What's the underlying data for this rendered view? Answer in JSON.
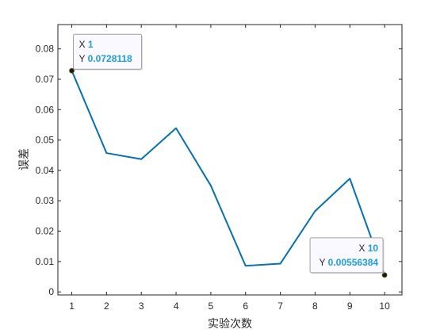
{
  "chart_data": {
    "type": "line",
    "xlabel": "实验次数",
    "ylabel": "误差",
    "x": [
      1,
      2,
      3,
      4,
      5,
      6,
      7,
      8,
      9,
      10
    ],
    "series": [
      {
        "values": [
          0.0728118,
          0.0457,
          0.0437,
          0.0539,
          0.035,
          0.0086,
          0.0093,
          0.0266,
          0.0373,
          0.00556384
        ],
        "color": "#0072bd"
      }
    ],
    "xlim": [
      0.6,
      10.5
    ],
    "ylim": [
      -0.001,
      0.088
    ],
    "xticks": [
      "1",
      "2",
      "3",
      "4",
      "5",
      "6",
      "7",
      "8",
      "9",
      "10"
    ],
    "yticks": [
      "0",
      "0.01",
      "0.02",
      "0.03",
      "0.04",
      "0.05",
      "0.06",
      "0.07",
      "0.08"
    ],
    "grid": false,
    "box": true,
    "datatips": [
      {
        "x_label": "X",
        "x_value": "1",
        "y_label": "Y",
        "y_value": "0.0728118",
        "point_index": 0,
        "anchor": "above-right"
      },
      {
        "x_label": "X",
        "x_value": "10",
        "y_label": "Y",
        "y_value": "0.00556384",
        "point_index": 9,
        "anchor": "above-left"
      }
    ]
  }
}
